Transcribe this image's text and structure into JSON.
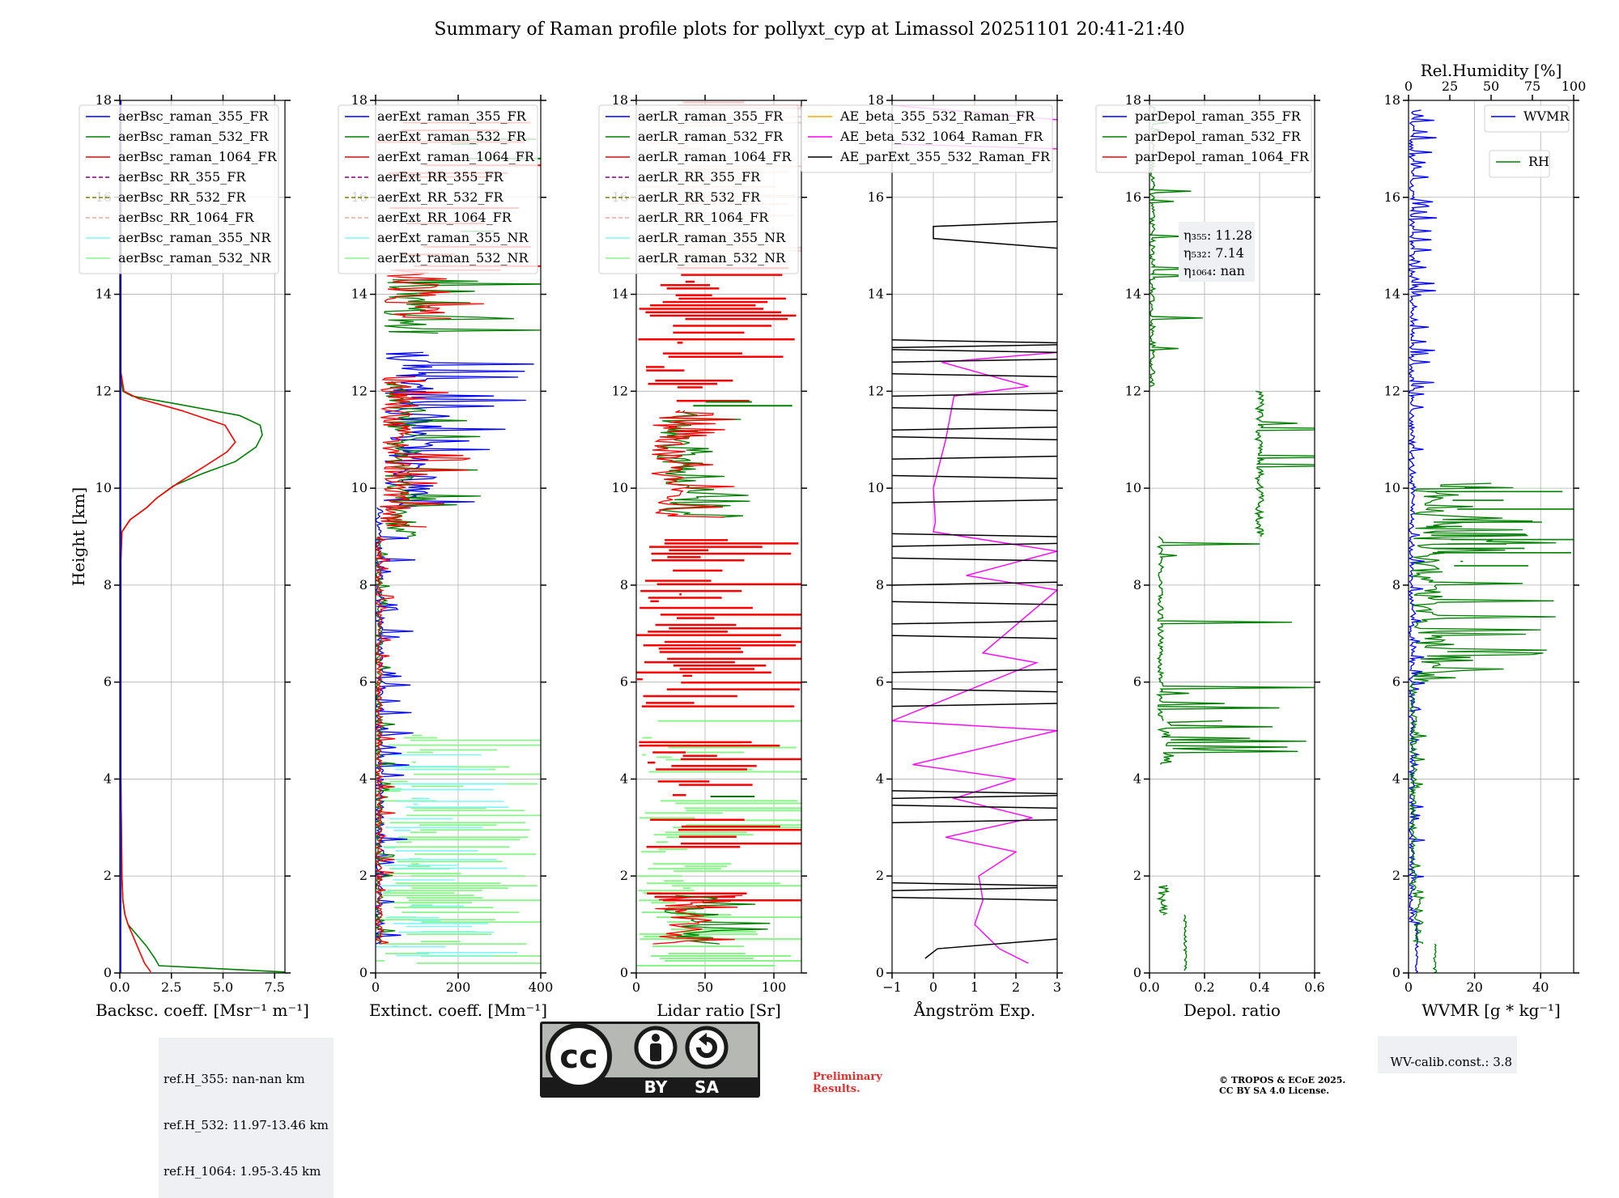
{
  "title": "Summary of Raman profile plots for pollyxt_cyp at Limassol 20251101 20:41-21:40",
  "colors": {
    "c355": "#0000ff",
    "c532": "#008000",
    "c1064": "#ff0000",
    "rr355": "#800080",
    "rr532": "#808000",
    "rr1064": "#f4a6a0",
    "nr355": "#7ff5f5",
    "nr532": "#88f588",
    "ae1": "#ffa500",
    "ae2": "#ff00ff",
    "ae3": "#000000"
  },
  "chart_data": [
    {
      "id": "bsc",
      "type": "line",
      "xlabel": "Backsc. coeff. [Msr⁻¹ m⁻¹]",
      "ylabel": "Height [km]",
      "xlim": [
        0,
        8
      ],
      "ylim": [
        0,
        18
      ],
      "xticks": [
        0,
        2.5,
        5,
        7.5
      ],
      "xtick_labels": [
        "0.0",
        "2.5",
        "5.0",
        "7.5"
      ],
      "yticks": [
        0,
        2,
        4,
        6,
        8,
        10,
        12,
        14,
        16,
        18
      ],
      "legend": [
        "aerBsc_raman_355_FR",
        "aerBsc_raman_532_FR",
        "aerBsc_raman_1064_FR",
        "aerBsc_RR_355_FR",
        "aerBsc_RR_532_FR",
        "aerBsc_RR_1064_FR",
        "aerBsc_raman_355_NR",
        "aerBsc_raman_532_NR"
      ],
      "series": [
        {
          "name": "aerBsc_raman_532_FR",
          "color": "c532",
          "x": [
            8,
            1.9,
            1.7,
            1.3,
            0.8,
            0.4,
            0.25,
            0.15,
            0.1,
            0.05,
            0.05,
            0.1,
            0.5,
            1.3,
            1.8,
            2.6,
            4.0,
            5.6,
            6.6,
            6.9,
            6.8,
            5.8,
            2.6,
            0.6,
            0.15,
            0.05,
            0.05,
            0.05
          ],
          "y": [
            0.02,
            0.15,
            0.3,
            0.55,
            0.8,
            1.0,
            1.2,
            1.5,
            2.0,
            4.0,
            8.5,
            9.1,
            9.35,
            9.6,
            9.8,
            10.05,
            10.3,
            10.55,
            10.85,
            11.1,
            11.3,
            11.5,
            11.75,
            11.9,
            12.0,
            12.3,
            15,
            18
          ]
        },
        {
          "name": "aerBsc_raman_1064_FR",
          "color": "c1064",
          "x": [
            1.5,
            1.2,
            0.9,
            0.6,
            0.4,
            0.25,
            0.15,
            0.1,
            0.05,
            0.05,
            0.1,
            0.5,
            1.3,
            1.8,
            2.8,
            4.1,
            5.2,
            5.6,
            5.1,
            3.0,
            0.9,
            0.2,
            0.05,
            0.05
          ],
          "y": [
            0.02,
            0.2,
            0.5,
            0.8,
            1.0,
            1.2,
            1.5,
            2.0,
            4.0,
            8.5,
            9.1,
            9.35,
            9.6,
            9.8,
            10.1,
            10.45,
            10.75,
            10.95,
            11.3,
            11.6,
            11.85,
            12.0,
            12.4,
            18
          ]
        }
      ]
    },
    {
      "id": "ext",
      "type": "line",
      "xlabel": "Extinct. coeff. [Mm⁻¹]",
      "xlim": [
        0,
        400
      ],
      "ylim": [
        0,
        18
      ],
      "xticks": [
        0,
        200,
        400
      ],
      "xtick_labels": [
        "0",
        "200",
        "400"
      ],
      "yticks": [
        0,
        2,
        4,
        6,
        8,
        10,
        12,
        14,
        16,
        18
      ],
      "legend": [
        "aerExt_raman_355_FR",
        "aerExt_raman_532_FR",
        "aerExt_raman_1064_FR",
        "aerExt_RR_355_FR",
        "aerExt_RR_532_FR",
        "aerExt_RR_1064_FR",
        "aerExt_raman_355_NR",
        "aerExt_raman_532_NR"
      ]
    },
    {
      "id": "lr",
      "type": "line",
      "xlabel": "Lidar ratio [Sr]",
      "xlim": [
        0,
        120
      ],
      "ylim": [
        0,
        18
      ],
      "xticks": [
        0,
        50,
        100
      ],
      "xtick_labels": [
        "0",
        "50",
        "100"
      ],
      "yticks": [
        0,
        2,
        4,
        6,
        8,
        10,
        12,
        14,
        16,
        18
      ],
      "legend": [
        "aerLR_raman_355_FR",
        "aerLR_raman_532_FR",
        "aerLR_raman_1064_FR",
        "aerLR_RR_355_FR",
        "aerLR_RR_532_FR",
        "aerLR_RR_1064_FR",
        "aerLR_raman_355_NR",
        "aerLR_raman_532_NR"
      ]
    },
    {
      "id": "ae",
      "type": "line",
      "xlabel": "Ångström Exp.",
      "xlim": [
        -1,
        3
      ],
      "ylim": [
        0,
        18
      ],
      "xticks": [
        -1,
        0,
        1,
        2,
        3
      ],
      "xtick_labels": [
        "−1",
        "0",
        "1",
        "2",
        "3"
      ],
      "yticks": [
        0,
        2,
        4,
        6,
        8,
        10,
        12,
        14,
        16,
        18
      ],
      "legend": [
        "AE_beta_355_532_Raman_FR",
        "AE_beta_532_1064_Raman_FR",
        "AE_parExt_355_532_Raman_FR"
      ]
    },
    {
      "id": "dep",
      "type": "line",
      "xlabel": "Depol. ratio",
      "xlim": [
        0,
        0.6
      ],
      "ylim": [
        0,
        18
      ],
      "xticks": [
        0,
        0.2,
        0.4,
        0.6
      ],
      "xtick_labels": [
        "0.0",
        "0.2",
        "0.4",
        "0.6"
      ],
      "yticks": [
        0,
        2,
        4,
        6,
        8,
        10,
        12,
        14,
        16,
        18
      ],
      "legend": [
        "parDepol_raman_355_FR",
        "parDepol_raman_532_FR",
        "parDepol_raman_1064_FR"
      ],
      "eta": [
        "η₃₅₅: 11.28",
        "η₅₃₂: 7.14",
        "η₁₀₆₄: nan"
      ]
    },
    {
      "id": "wv",
      "type": "line",
      "xlabel": "WVMR [g * kg⁻¹]",
      "top_xlabel": "Rel.Humidity [%]",
      "xlim": [
        0,
        50
      ],
      "ylim": [
        0,
        18
      ],
      "xticks": [
        0,
        20,
        40
      ],
      "xtick_labels": [
        "0",
        "20",
        "40"
      ],
      "top_xticks": [
        0,
        25,
        50,
        75,
        100
      ],
      "top_xlim": [
        0,
        100
      ],
      "yticks": [
        0,
        2,
        4,
        6,
        8,
        10,
        12,
        14,
        16,
        18
      ],
      "legend": [
        "WVMR"
      ],
      "legend2": [
        "RH"
      ]
    }
  ],
  "refbox": [
    "ref.H_355: nan-nan km",
    "ref.H_532: 11.97-13.46 km",
    "ref.H_1064: 1.95-3.45 km"
  ],
  "wvcalib": "WV-calib.const.: 3.8",
  "license_logo": {
    "by": "BY",
    "sa": "SA",
    "cc": "cc"
  },
  "prelim": [
    "Preliminary",
    "Results."
  ],
  "copyright": [
    "© TROPOS & ECoE 2025.",
    "CC BY SA 4.0 License."
  ]
}
